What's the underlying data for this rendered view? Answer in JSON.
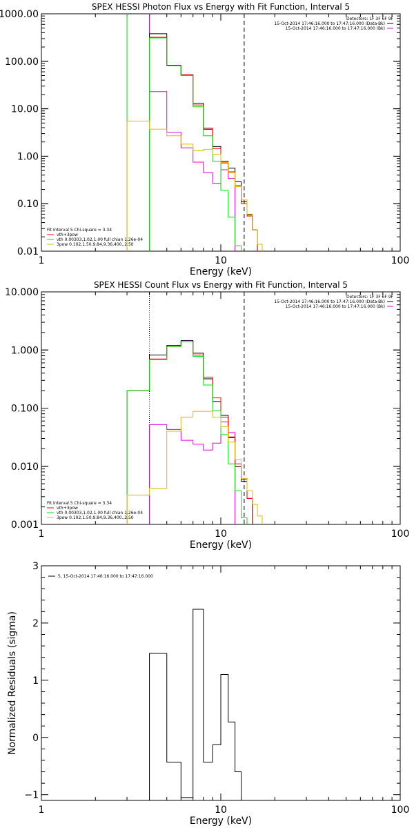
{
  "chart_data": [
    {
      "type": "line",
      "title": "SPEX HESSI Photon Flux vs Energy with Fit Function, Interval 5",
      "xlabel": "Energy (keV)",
      "ylabel": "",
      "xscale": "log",
      "yscale": "log",
      "xlim": [
        1,
        100
      ],
      "ylim": [
        0.01,
        1000
      ],
      "x_ticks": [
        "1",
        "10",
        "100"
      ],
      "y_ticks": [
        "0.01",
        "0.10",
        "1.00",
        "10.00",
        "100.00",
        "1000.00"
      ],
      "legend_placement": "top-right",
      "legend_header": "Detectors: 1F 3F 6F 9F",
      "legend": [
        {
          "label": "15-Oct-2014 17:46:16.000 to 17:47:16.000 (Data-Bk)",
          "color": "#000000"
        },
        {
          "label": "15-Oct-2014 17:46:16.000 to 17:47:16.000 (Bk)",
          "color": "#dd00dd"
        }
      ],
      "fit_legend_placement": "bottom-left",
      "fit_legend_header": "Fit Interval 5   Chi-square = 3.34",
      "fit_legend": [
        {
          "label": "vth+3pow",
          "color": "#ff0000"
        },
        {
          "label": "vth 0.00303,1.02,1.00   full chian 1.26e-04",
          "color": "#00dd00"
        },
        {
          "label": "3pow 0.102,1.50,9.84,9.36,400.,2.50",
          "color": "#ddbb00"
        }
      ],
      "vlines": [
        {
          "x": 3.0,
          "style": "solid",
          "color": "#00dd00"
        },
        {
          "x": 4.0,
          "style": "dotted",
          "color": "#000000"
        },
        {
          "x": 4.0,
          "style": "solid",
          "color": "#dd00dd"
        },
        {
          "x": 13.5,
          "style": "dashed",
          "color": "#000000"
        }
      ],
      "bin_edges": [
        3.0,
        4.0,
        5.0,
        6.0,
        7.0,
        8.0,
        9.0,
        10.0,
        11.0,
        12.0,
        13.0,
        14.0,
        15.0,
        16.0,
        17.0,
        18.0
      ],
      "series": [
        {
          "name": "Data-Bk",
          "color": "#000000",
          "start_bin": 1,
          "values": [
            380,
            82,
            52,
            13,
            3.7,
            1.6,
            0.78,
            0.56,
            0.29,
            0.11,
            0.058,
            0.028
          ]
        },
        {
          "name": "Bk",
          "color": "#dd00dd",
          "start_bin": 1,
          "values": [
            23,
            3.2,
            1.5,
            0.75,
            0.45,
            0.27,
            0.52,
            0.34
          ]
        },
        {
          "name": "vth+3pow",
          "color": "#ff0000",
          "start_bin": 1,
          "values": [
            320,
            80,
            52,
            12,
            3.9,
            1.45,
            0.72,
            0.47,
            0.24,
            0.1,
            0.055,
            0.028
          ]
        },
        {
          "name": "vth",
          "color": "#00dd00",
          "start_bin": 1,
          "values": [
            310,
            80,
            50,
            11,
            2.7,
            0.78,
            0.19,
            0.052,
            0.013
          ]
        },
        {
          "name": "3pow",
          "color": "#ddbb00",
          "start_bin": 0,
          "values": [
            5.5,
            3.7,
            2.7,
            1.8,
            1.3,
            1.4,
            1.1,
            0.75,
            0.45,
            0.23,
            0.12,
            0.06,
            0.028,
            0.014
          ]
        }
      ]
    },
    {
      "type": "line",
      "title": "SPEX HESSI Count Flux vs Energy with Fit Function, Interval 5",
      "xlabel": "Energy (keV)",
      "ylabel": "",
      "xscale": "log",
      "yscale": "log",
      "xlim": [
        1,
        100
      ],
      "ylim": [
        0.001,
        10
      ],
      "x_ticks": [
        "1",
        "10",
        "100"
      ],
      "y_ticks": [
        "0.001",
        "0.010",
        "0.100",
        "1.000",
        "10.000"
      ],
      "legend_placement": "top-right",
      "legend_header": "Detectors: 1F 3F 6F 9F",
      "legend": [
        {
          "label": "15-Oct-2014 17:46:16.000 to 17:47:16.000 (Data-Bk)",
          "color": "#000000"
        },
        {
          "label": "15-Oct-2014 17:46:16.000 to 17:47:16.000 (Bk)",
          "color": "#dd00dd"
        }
      ],
      "fit_legend_placement": "bottom-left",
      "fit_legend_header": "Fit Interval 5   Chi-square = 3.34",
      "fit_legend": [
        {
          "label": "vth+3pow",
          "color": "#ff0000"
        },
        {
          "label": "vth 0.00303,1.02,1.00   full chian 1.26e-04",
          "color": "#00dd00"
        },
        {
          "label": "3pow 0.102,1.50,9.84,9.36,400.,2.50",
          "color": "#ddbb00"
        }
      ],
      "vlines": [
        {
          "x": 4.0,
          "style": "dotted",
          "color": "#000000"
        },
        {
          "x": 13.5,
          "style": "dashed",
          "color": "#000000"
        }
      ],
      "bin_edges": [
        3.0,
        4.0,
        5.0,
        6.0,
        7.0,
        8.0,
        9.0,
        10.0,
        11.0,
        12.0,
        13.0,
        14.0,
        15.0,
        16.0,
        17.0,
        18.0
      ],
      "series": [
        {
          "name": "Data-Bk",
          "color": "#000000",
          "start_bin": 0,
          "values": [
            0.2,
            0.82,
            1.2,
            1.45,
            0.88,
            0.32,
            0.13,
            0.075,
            0.031,
            0.0098,
            0.0055,
            0.0028
          ]
        },
        {
          "name": "Bk",
          "color": "#dd00dd",
          "start_bin": 1,
          "values": [
            0.052,
            0.043,
            0.028,
            0.024,
            0.019,
            0.025,
            0.058,
            0.038
          ]
        },
        {
          "name": "vth+3pow",
          "color": "#ff0000",
          "start_bin": 0,
          "values": [
            0.2,
            0.7,
            1.15,
            1.38,
            0.82,
            0.34,
            0.15,
            0.07,
            0.032,
            0.011,
            0.006,
            0.0028
          ]
        },
        {
          "name": "vth",
          "color": "#00dd00",
          "start_bin": 0,
          "values": [
            0.2,
            0.68,
            1.15,
            1.38,
            0.78,
            0.25,
            0.09,
            0.035,
            0.011,
            0.0038,
            0.0013
          ]
        },
        {
          "name": "3pow",
          "color": "#ddbb00",
          "start_bin": 0,
          "values": [
            0.0032,
            0.0042,
            0.04,
            0.07,
            0.088,
            0.088,
            0.07,
            0.048,
            0.026,
            0.013,
            0.0062,
            0.0038,
            0.0022,
            0.0014
          ]
        }
      ]
    },
    {
      "type": "line",
      "title": "",
      "xlabel": "Energy (keV)",
      "ylabel": "Normalized Residuals (sigma)",
      "xscale": "log",
      "yscale": "linear",
      "xlim": [
        1,
        100
      ],
      "ylim": [
        -1.1,
        3
      ],
      "x_ticks": [
        "1",
        "10",
        "100"
      ],
      "y_ticks": [
        "−1",
        "0",
        "1",
        "2",
        "3"
      ],
      "legend_placement": "top-left",
      "legend": [
        {
          "label": "5, 15-Oct-2014 17:46:16.000 to 17:47:16.000",
          "color": "#000000"
        }
      ],
      "bin_edges": [
        4.0,
        5.0,
        6.0,
        7.0,
        8.0,
        9.0,
        10.0,
        11.0,
        12.0,
        13.0
      ],
      "series": [
        {
          "name": "5, 15-Oct-2014 17:46:16.000 to 17:47:16.000",
          "color": "#000000",
          "start_bin": 0,
          "values": [
            1.47,
            -0.43,
            -1.05,
            2.24,
            -0.43,
            -0.13,
            1.1,
            0.27,
            -0.6
          ]
        }
      ]
    }
  ]
}
